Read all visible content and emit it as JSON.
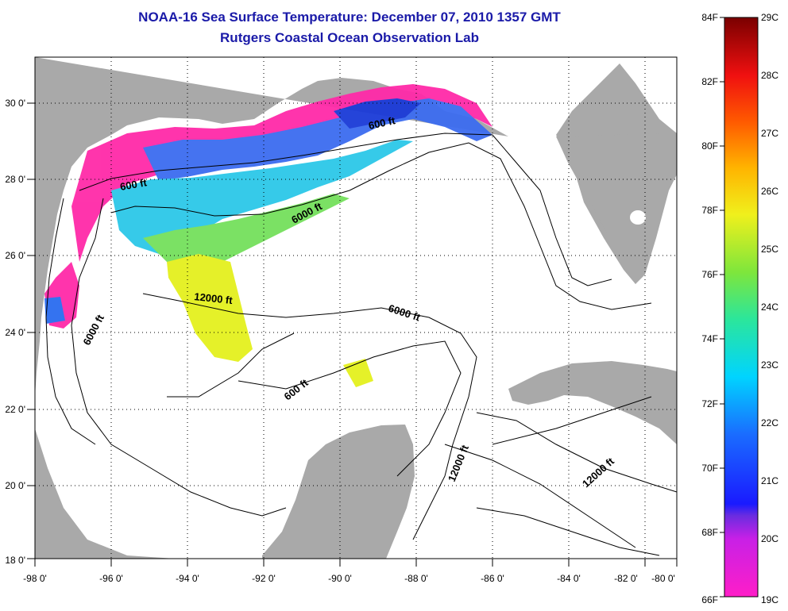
{
  "header": {
    "title": "NOAA-16 Sea Surface Temperature:  December 07, 2010 1357 GMT",
    "subtitle": "Rutgers Coastal Ocean Observation Lab"
  },
  "map": {
    "lon_labels": [
      "-98 0'",
      "-96 0'",
      "-94 0'",
      "-92 0'",
      "-90 0'",
      "-88 0'",
      "-86 0'",
      "-84 0'",
      "-82 0'",
      "-80 0'"
    ],
    "lat_labels": [
      "30 0'",
      "28 0'",
      "26 0'",
      "24 0'",
      "22 0'",
      "20 0'",
      "18 0'"
    ],
    "contour_labels": [
      "600 ft",
      "600 ft",
      "6000 ft",
      "6000 ft",
      "6000 ft",
      "12000 ft",
      "600 ft",
      "12000 ft",
      "12000 ft"
    ],
    "colors": {
      "land": "#a9a9a9",
      "ocean": "#ffffff",
      "contour": "#000000"
    }
  },
  "colorbar": {
    "f_labels": [
      "84F",
      "82F",
      "80F",
      "78F",
      "76F",
      "74F",
      "72F",
      "70F",
      "68F",
      "66F"
    ],
    "c_labels": [
      "29C",
      "28C",
      "27C",
      "26C",
      "25C",
      "24C",
      "23C",
      "22C",
      "21C",
      "20C",
      "19C"
    ]
  }
}
